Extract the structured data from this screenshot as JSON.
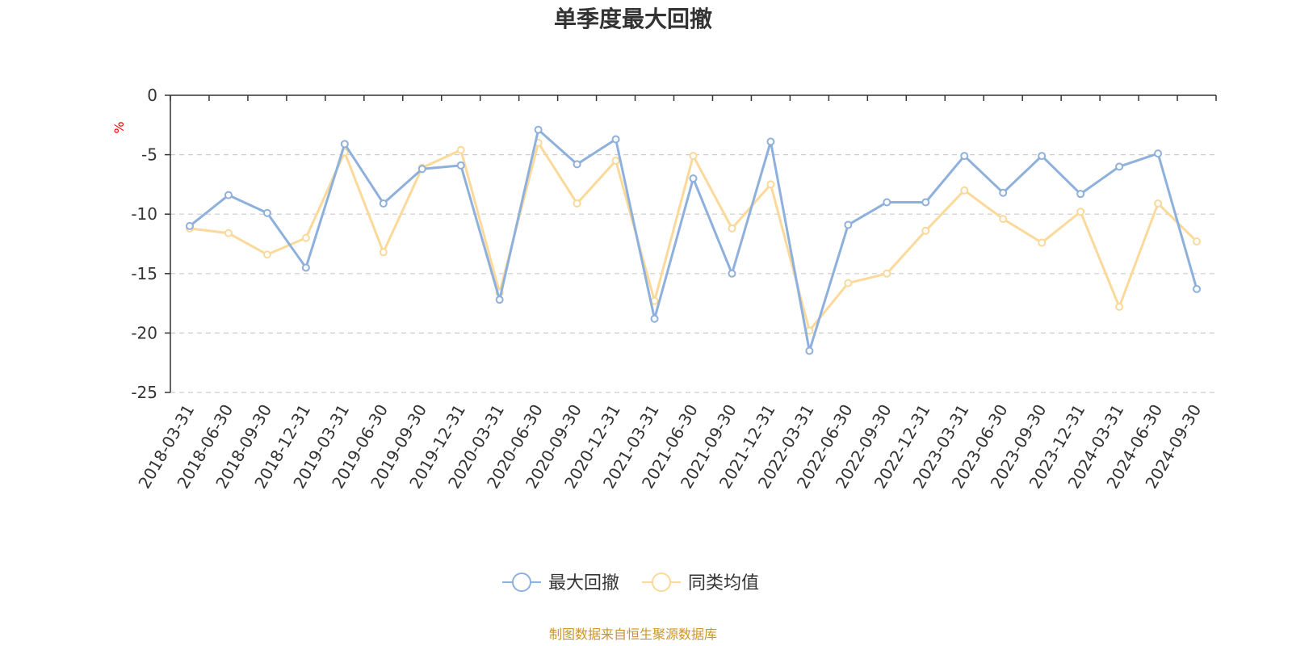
{
  "chart_data": {
    "type": "line",
    "title": "单季度最大回撤",
    "ylabel": "%",
    "ylim": [
      -25,
      0
    ],
    "yticks": [
      0,
      -5,
      -10,
      -15,
      -20,
      -25
    ],
    "grid": true,
    "legend_position": "bottom-center",
    "categories": [
      "2018-03-31",
      "2018-06-30",
      "2018-09-30",
      "2018-12-31",
      "2019-03-31",
      "2019-06-30",
      "2019-09-30",
      "2019-12-31",
      "2020-03-31",
      "2020-06-30",
      "2020-09-30",
      "2020-12-31",
      "2021-03-31",
      "2021-06-30",
      "2021-09-30",
      "2021-12-31",
      "2022-03-31",
      "2022-06-30",
      "2022-09-30",
      "2022-12-31",
      "2023-03-31",
      "2023-06-30",
      "2023-09-30",
      "2023-12-31",
      "2024-03-31",
      "2024-06-30",
      "2024-09-30"
    ],
    "series": [
      {
        "name": "最大回撤",
        "color": "#8eb0dc",
        "values": [
          -11.0,
          -8.4,
          -9.9,
          -14.5,
          -4.1,
          -9.1,
          -6.2,
          -5.9,
          -17.2,
          -2.9,
          -5.8,
          -3.7,
          -18.8,
          -7.0,
          -15.0,
          -3.9,
          -21.5,
          -10.9,
          -9.0,
          -9.0,
          -5.1,
          -8.2,
          -5.1,
          -8.3,
          -6.0,
          -4.9,
          -16.3
        ]
      },
      {
        "name": "同类均值",
        "color": "#fbd99a",
        "values": [
          -11.2,
          -11.6,
          -13.4,
          -12.0,
          -4.8,
          -13.2,
          -6.1,
          -4.6,
          -16.6,
          -4.0,
          -9.1,
          -5.5,
          -17.3,
          -5.1,
          -11.2,
          -7.5,
          -19.8,
          -15.8,
          -15.0,
          -11.4,
          -8.0,
          -10.4,
          -12.4,
          -9.8,
          -17.8,
          -9.1,
          -12.3
        ]
      }
    ]
  },
  "footer": {
    "source": "制图数据来自恒生聚源数据库",
    "source_color": "#c9962b"
  },
  "colors": {
    "axis": "#333333",
    "grid": "#cccccc",
    "ylabel": "#ff0000"
  }
}
